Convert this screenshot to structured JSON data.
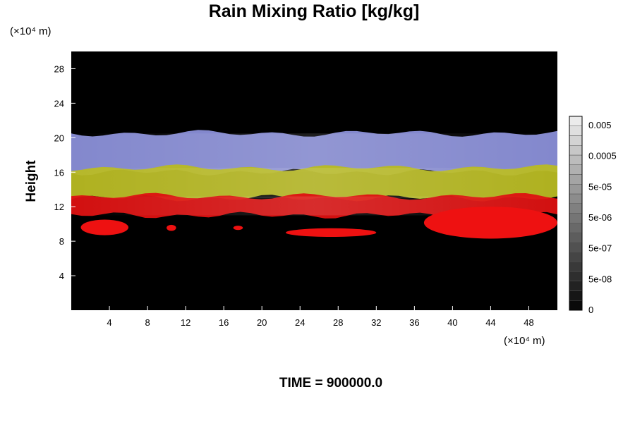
{
  "chart_data": {
    "type": "heatmap",
    "title": "Rain Mixing Ratio [kg/kg]",
    "ylabel": "Height",
    "x_unit": "(×10⁴ m)",
    "y_unit": "(×10⁴ m)",
    "xlim": [
      0,
      51
    ],
    "ylim": [
      0,
      30
    ],
    "x_ticks": [
      "4",
      "8",
      "12",
      "16",
      "20",
      "24",
      "28",
      "32",
      "36",
      "40",
      "44",
      "48"
    ],
    "y_ticks": [
      "4",
      "8",
      "12",
      "16",
      "20",
      "24",
      "28"
    ],
    "footer": "TIME = 900000.0",
    "colorbar": {
      "labels": [
        "0",
        "5e-08",
        "5e-07",
        "5e-06",
        "5e-05",
        "0.0005",
        "0.005"
      ],
      "levels": 20,
      "colors": [
        "#000000",
        "#ffffff"
      ]
    },
    "background_color": "#000000",
    "bands": [
      {
        "name": "upper",
        "y_range": [
          16,
          20.5
        ],
        "color": "#8a8fd8"
      },
      {
        "name": "middle",
        "y_range": [
          13,
          16.5
        ],
        "color": "#b8bb22"
      },
      {
        "name": "lower",
        "y_range": [
          11,
          13.2
        ],
        "color": "#dd1111"
      }
    ],
    "patches": [
      {
        "x_range": [
          1,
          6
        ],
        "y_range": [
          8.7,
          10.5
        ],
        "color": "#ee1111"
      },
      {
        "x_range": [
          10,
          11
        ],
        "y_range": [
          9.2,
          9.9
        ],
        "color": "#ee1111"
      },
      {
        "x_range": [
          17,
          18
        ],
        "y_range": [
          9.3,
          9.8
        ],
        "color": "#ee1111"
      },
      {
        "x_range": [
          22.5,
          32
        ],
        "y_range": [
          8.5,
          9.5
        ],
        "color": "#ee1111"
      },
      {
        "x_range": [
          37,
          51
        ],
        "y_range": [
          8.3,
          12
        ],
        "color": "#ee1111"
      }
    ]
  }
}
